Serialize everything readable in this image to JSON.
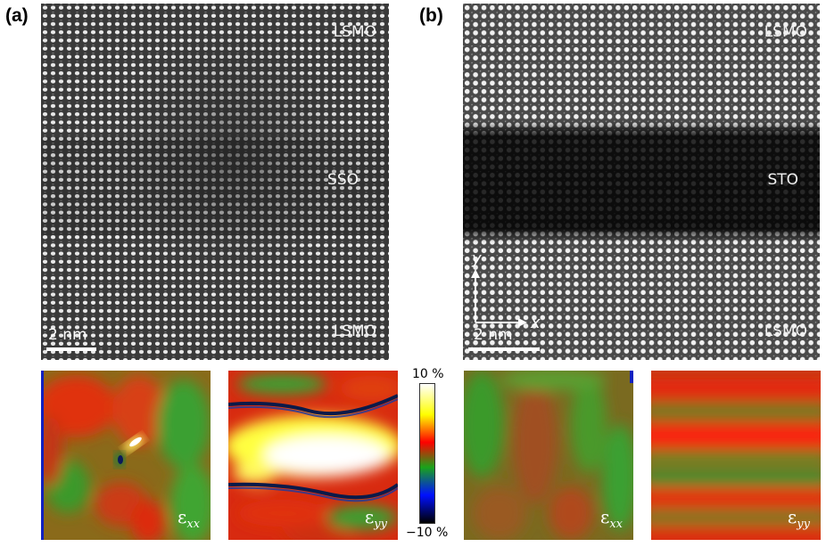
{
  "panels": [
    {
      "letter": "(a)",
      "labels": {
        "top": "LSMO",
        "middle": "SSO",
        "bottom": "LSMO"
      },
      "scale_bar": "2 nm"
    },
    {
      "letter": "(b)",
      "labels": {
        "top": "LSMO",
        "middle": "STO",
        "bottom": "LSMO"
      },
      "scale_bar": "2 nm"
    }
  ],
  "axes": {
    "x": "x",
    "y": "y"
  },
  "strain_maps": [
    {
      "symbol": "ε",
      "subscript": "xx"
    },
    {
      "symbol": "ε",
      "subscript": "yy"
    },
    {
      "symbol": "ε",
      "subscript": "xx"
    },
    {
      "symbol": "ε",
      "subscript": "yy"
    }
  ],
  "colorbar": {
    "max_label": "10 %",
    "min_label": "−10 %",
    "colors": [
      "#ffffff",
      "#ffff00",
      "#ff0000",
      "#00aa00",
      "#0000ff",
      "#000000"
    ]
  }
}
